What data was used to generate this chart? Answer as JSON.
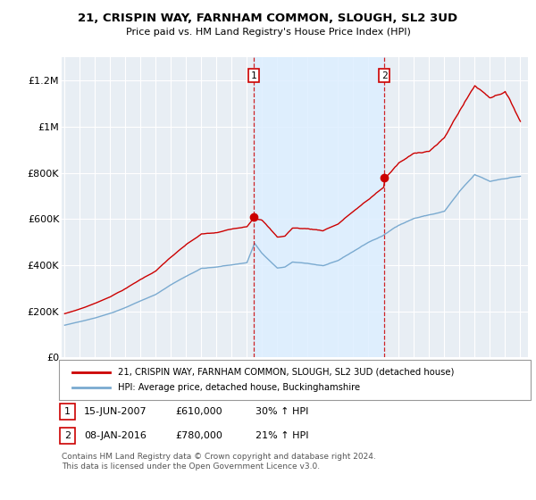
{
  "title": "21, CRISPIN WAY, FARNHAM COMMON, SLOUGH, SL2 3UD",
  "subtitle": "Price paid vs. HM Land Registry's House Price Index (HPI)",
  "ylabel_ticks": [
    "£0",
    "£200K",
    "£400K",
    "£600K",
    "£800K",
    "£1M",
    "£1.2M"
  ],
  "ytick_values": [
    0,
    200000,
    400000,
    600000,
    800000,
    1000000,
    1200000
  ],
  "ylim": [
    0,
    1300000
  ],
  "xlim_start": 1994.8,
  "xlim_end": 2025.5,
  "sale1_date": 2007.45,
  "sale1_price": 610000,
  "sale1_label": "1",
  "sale2_date": 2016.04,
  "sale2_price": 780000,
  "sale2_label": "2",
  "legend_line1": "21, CRISPIN WAY, FARNHAM COMMON, SLOUGH, SL2 3UD (detached house)",
  "legend_line2": "HPI: Average price, detached house, Buckinghamshire",
  "footer": "Contains HM Land Registry data © Crown copyright and database right 2024.\nThis data is licensed under the Open Government Licence v3.0.",
  "red_color": "#cc0000",
  "blue_color": "#7aaad0",
  "shade_color": "#ddeeff",
  "bg_color": "#e8eef4"
}
